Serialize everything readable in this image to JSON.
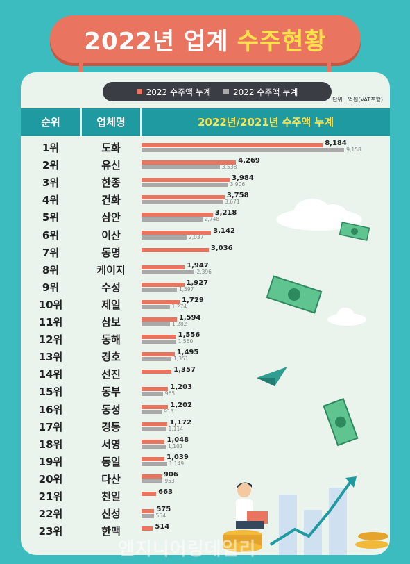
{
  "title": {
    "main": "2022년 업계",
    "highlight": "수주현황"
  },
  "legend": {
    "items": [
      {
        "label": "2022 수주액 누계",
        "color": "#e9745f"
      },
      {
        "label": "2022 수주액 누계",
        "color": "#a9a9a9"
      }
    ]
  },
  "unit_note": "단위 : 억원(VAT포함)",
  "table_header": {
    "rank": "순위",
    "company": "업체명",
    "chart": "2022년/2021년 수주액 누계"
  },
  "watermark": "엔지니어링데일리",
  "colors": {
    "bar_2022": "#e9745f",
    "bar_2021": "#a9a9a9",
    "header_bg": "#1f9aa0",
    "highlight": "#ffe24a"
  },
  "chart_data": {
    "type": "bar",
    "orientation": "horizontal",
    "categories": [
      "도화",
      "유신",
      "한종",
      "건화",
      "삼안",
      "이산",
      "동명",
      "케이지",
      "수성",
      "제일",
      "삼보",
      "동해",
      "경호",
      "선진",
      "동부",
      "동성",
      "경동",
      "서영",
      "동일",
      "다산",
      "천일",
      "신성",
      "한맥"
    ],
    "ranks": [
      "1위",
      "2위",
      "3위",
      "4위",
      "5위",
      "6위",
      "7위",
      "8위",
      "9위",
      "10위",
      "11위",
      "12위",
      "13위",
      "14위",
      "15위",
      "16위",
      "17위",
      "18위",
      "19위",
      "20위",
      "21위",
      "22위",
      "23위"
    ],
    "series": [
      {
        "values": [
          8184,
          4269,
          3984,
          3758,
          3218,
          3142,
          3036,
          1947,
          1927,
          1729,
          1594,
          1556,
          1495,
          1357,
          1203,
          1202,
          1172,
          1048,
          1039,
          906,
          663,
          575,
          514
        ],
        "labels": [
          "8,184",
          "4,269",
          "3,984",
          "3,758",
          "3,218",
          "3,142",
          "3,036",
          "1,947",
          "1,927",
          "1,729",
          "1,594",
          "1,556",
          "1,495",
          "1,357",
          "1,203",
          "1,202",
          "1,172",
          "1,048",
          "1,039",
          "906",
          "663",
          "575",
          "514"
        ]
      },
      {
        "values": [
          9158,
          3538,
          3906,
          3671,
          2748,
          2037,
          null,
          2396,
          1597,
          1274,
          1282,
          1560,
          1351,
          null,
          965,
          913,
          1114,
          1101,
          1149,
          953,
          null,
          554,
          null
        ],
        "labels": [
          "9,158",
          "3,538",
          "3,906",
          "3,671",
          "2,748",
          "2,037",
          "",
          "2,396",
          "1,597",
          "1,274",
          "1,282",
          "1,560",
          "1,351",
          "",
          "965",
          "913",
          "1,114",
          "1,101",
          "1,149",
          "953",
          "",
          "554",
          ""
        ]
      }
    ],
    "xlim": [
      0,
      9400
    ]
  }
}
